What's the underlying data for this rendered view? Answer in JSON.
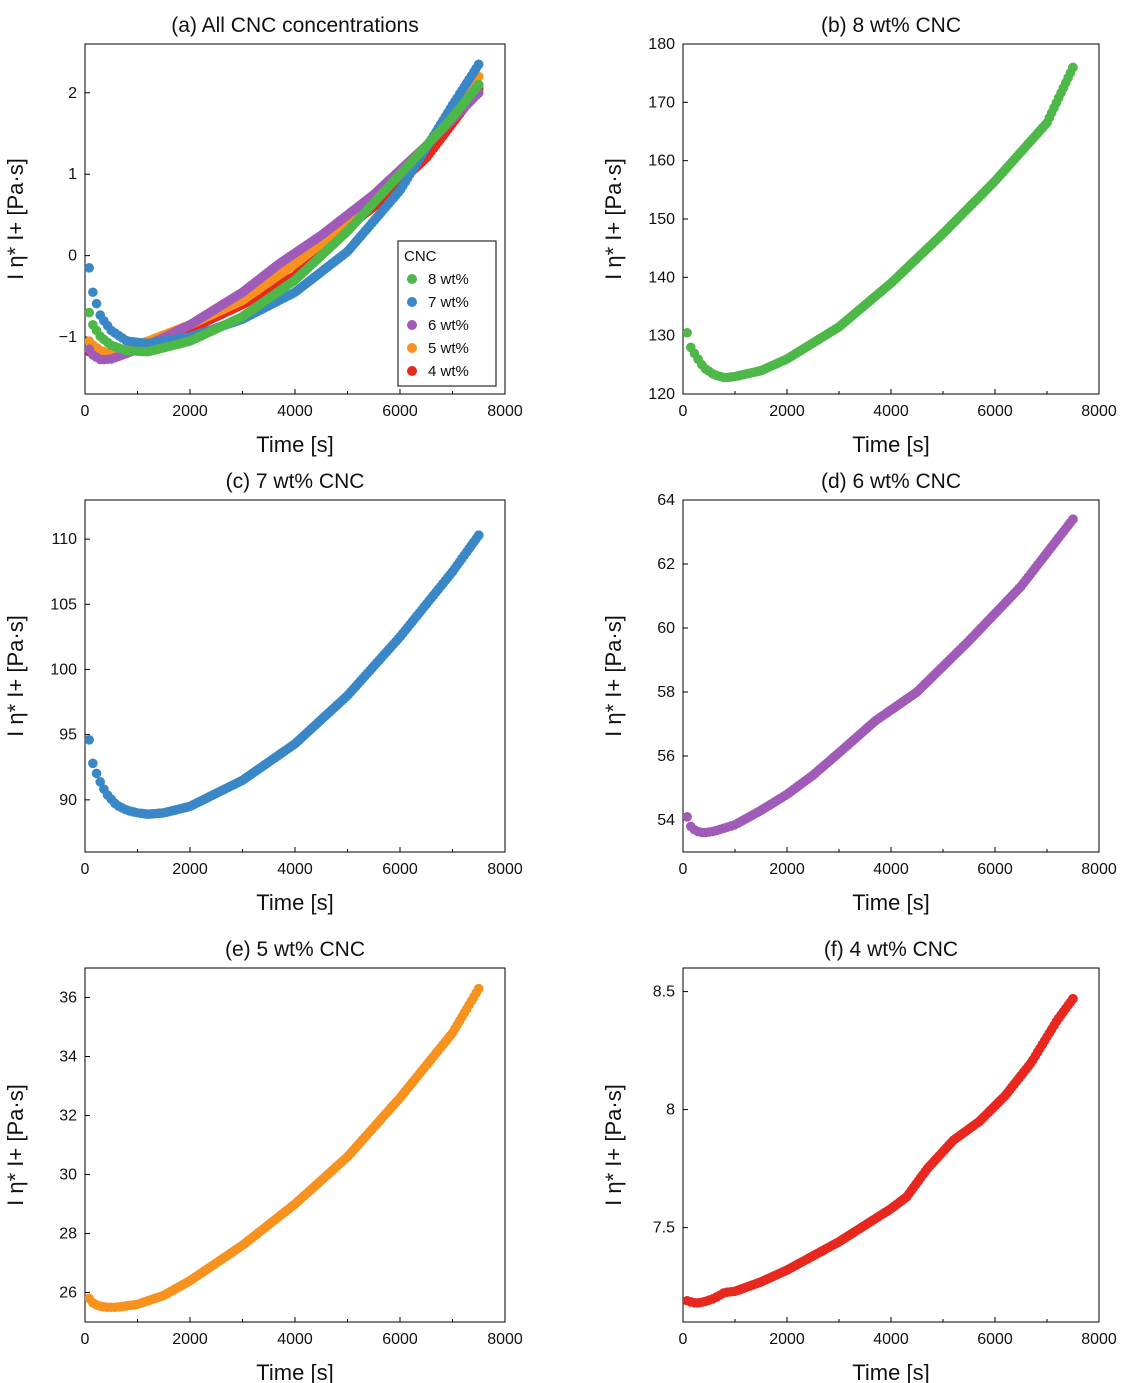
{
  "colors": {
    "8 wt%": "#4db848",
    "7 wt%": "#3a87c8",
    "6 wt%": "#a05ab8",
    "5 wt%": "#f7921e",
    "4 wt%": "#e8281e"
  },
  "chart_data": [
    {
      "id": "a",
      "type": "scatter",
      "title": "(a) All CNC concentrations",
      "xlabel": "Time [s]",
      "ylabel": "I η* I+ [Pa·s]",
      "xlim": [
        0,
        8000
      ],
      "ylim": [
        -1.7,
        2.6
      ],
      "xticks": [
        0,
        2000,
        4000,
        6000,
        8000
      ],
      "yticks": [
        -1,
        0,
        1,
        2
      ],
      "legend": {
        "title": "CNC",
        "placement": "lower-right",
        "entries": [
          "8 wt%",
          "7 wt%",
          "6 wt%",
          "5 wt%",
          "4 wt%"
        ]
      },
      "series": [
        {
          "name": "8 wt%",
          "x": [
            80,
            150,
            300,
            500,
            800,
            1200,
            2000,
            3000,
            4000,
            5000,
            6000,
            7000,
            7500
          ],
          "y": [
            -0.7,
            -0.85,
            -1.0,
            -1.1,
            -1.17,
            -1.18,
            -1.05,
            -0.75,
            -0.3,
            0.3,
            1.0,
            1.7,
            2.1
          ]
        },
        {
          "name": "7 wt%",
          "x": [
            80,
            150,
            300,
            500,
            800,
            1200,
            2000,
            3000,
            4000,
            5000,
            6000,
            7000,
            7500
          ],
          "y": [
            -0.15,
            -0.45,
            -0.75,
            -0.92,
            -1.05,
            -1.08,
            -1.0,
            -0.78,
            -0.45,
            0.05,
            0.8,
            1.85,
            2.35
          ]
        },
        {
          "name": "6 wt%",
          "x": [
            80,
            150,
            300,
            500,
            800,
            1200,
            2000,
            3000,
            3700,
            4500,
            5500,
            6500,
            7500
          ],
          "y": [
            -1.15,
            -1.22,
            -1.28,
            -1.27,
            -1.2,
            -1.1,
            -0.85,
            -0.45,
            -0.1,
            0.25,
            0.75,
            1.35,
            2.0
          ]
        },
        {
          "name": "5 wt%",
          "x": [
            80,
            150,
            300,
            500,
            800,
            1200,
            2000,
            3000,
            4000,
            5000,
            6000,
            7000,
            7500
          ],
          "y": [
            -1.05,
            -1.1,
            -1.17,
            -1.2,
            -1.15,
            -1.05,
            -0.85,
            -0.55,
            -0.1,
            0.4,
            1.0,
            1.7,
            2.2
          ]
        },
        {
          "name": "4 wt%",
          "x": [
            80,
            150,
            300,
            500,
            800,
            1200,
            2000,
            3000,
            4000,
            4500,
            5500,
            6500,
            7500
          ],
          "y": [
            -1.18,
            -1.2,
            -1.22,
            -1.22,
            -1.17,
            -1.1,
            -0.9,
            -0.6,
            -0.25,
            0.1,
            0.6,
            1.2,
            2.05
          ]
        }
      ]
    },
    {
      "id": "b",
      "type": "scatter",
      "title": "(b) 8 wt% CNC",
      "xlabel": "Time [s]",
      "ylabel": "I η* I+ [Pa·s]",
      "xlim": [
        0,
        8000
      ],
      "ylim": [
        120,
        180
      ],
      "xticks": [
        0,
        2000,
        4000,
        6000,
        8000
      ],
      "yticks": [
        120,
        130,
        140,
        150,
        160,
        170,
        180
      ],
      "series": [
        {
          "name": "8 wt%",
          "x": [
            80,
            150,
            250,
            400,
            600,
            800,
            1000,
            1500,
            2000,
            3000,
            4000,
            5000,
            6000,
            7000,
            7500
          ],
          "y": [
            130.5,
            128.0,
            126.5,
            124.5,
            123.3,
            122.8,
            123.0,
            124.0,
            126.0,
            131.5,
            139.0,
            147.5,
            156.5,
            166.5,
            176.0
          ]
        }
      ]
    },
    {
      "id": "c",
      "type": "scatter",
      "title": "(c) 7 wt% CNC",
      "xlabel": "Time [s]",
      "ylabel": "I η* I+ [Pa·s]",
      "xlim": [
        0,
        8000
      ],
      "ylim": [
        86,
        113
      ],
      "xticks": [
        0,
        2000,
        4000,
        6000,
        8000
      ],
      "yticks": [
        90,
        95,
        100,
        105,
        110
      ],
      "series": [
        {
          "name": "7 wt%",
          "x": [
            80,
            150,
            250,
            400,
            600,
            800,
            1000,
            1200,
            1500,
            2000,
            3000,
            4000,
            5000,
            6000,
            7000,
            7500
          ],
          "y": [
            94.6,
            92.8,
            91.7,
            90.5,
            89.6,
            89.2,
            89.0,
            88.9,
            89.0,
            89.5,
            91.5,
            94.3,
            98.0,
            102.5,
            107.5,
            110.3
          ]
        }
      ]
    },
    {
      "id": "d",
      "type": "scatter",
      "title": "(d) 6 wt% CNC",
      "xlabel": "Time [s]",
      "ylabel": "I η* I+ [Pa·s]",
      "xlim": [
        0,
        8000
      ],
      "ylim": [
        53,
        64
      ],
      "xticks": [
        0,
        2000,
        4000,
        6000,
        8000
      ],
      "yticks": [
        54,
        56,
        58,
        60,
        62,
        64
      ],
      "series": [
        {
          "name": "6 wt%",
          "x": [
            80,
            150,
            250,
            400,
            600,
            800,
            1000,
            1500,
            2000,
            2500,
            3000,
            3700,
            4500,
            5500,
            6500,
            7500
          ],
          "y": [
            54.1,
            53.8,
            53.65,
            53.6,
            53.65,
            53.75,
            53.85,
            54.3,
            54.8,
            55.4,
            56.1,
            57.1,
            58.0,
            59.6,
            61.3,
            63.4
          ]
        }
      ]
    },
    {
      "id": "e",
      "type": "scatter",
      "title": "(e) 5 wt% CNC",
      "xlabel": "Time [s]",
      "ylabel": "I η* I+ [Pa·s]",
      "xlim": [
        0,
        8000
      ],
      "ylim": [
        25,
        37
      ],
      "xticks": [
        0,
        2000,
        4000,
        6000,
        8000
      ],
      "yticks": [
        26,
        28,
        30,
        32,
        34,
        36
      ],
      "series": [
        {
          "name": "5 wt%",
          "x": [
            80,
            150,
            250,
            400,
            600,
            800,
            1000,
            1500,
            2000,
            3000,
            4000,
            5000,
            6000,
            7000,
            7500
          ],
          "y": [
            25.8,
            25.65,
            25.55,
            25.5,
            25.5,
            25.55,
            25.6,
            25.9,
            26.4,
            27.6,
            29.0,
            30.6,
            32.6,
            34.8,
            36.3
          ]
        }
      ]
    },
    {
      "id": "f",
      "type": "scatter",
      "title": "(f) 4 wt% CNC",
      "xlabel": "Time [s]",
      "ylabel": "I η* I+ [Pa·s]",
      "xlim": [
        0,
        8000
      ],
      "ylim": [
        7.1,
        8.6
      ],
      "xticks": [
        0,
        2000,
        4000,
        6000,
        8000
      ],
      "yticks": [
        7.5,
        8.0,
        8.5
      ],
      "series": [
        {
          "name": "4 wt%",
          "x": [
            80,
            150,
            250,
            400,
            600,
            800,
            1000,
            1500,
            2000,
            2500,
            3000,
            3500,
            4000,
            4300,
            4700,
            5200,
            5700,
            6200,
            6700,
            7200,
            7500
          ],
          "y": [
            7.19,
            7.185,
            7.18,
            7.185,
            7.2,
            7.225,
            7.23,
            7.27,
            7.32,
            7.38,
            7.44,
            7.51,
            7.58,
            7.63,
            7.75,
            7.87,
            7.95,
            8.06,
            8.2,
            8.38,
            8.47
          ]
        }
      ]
    }
  ]
}
